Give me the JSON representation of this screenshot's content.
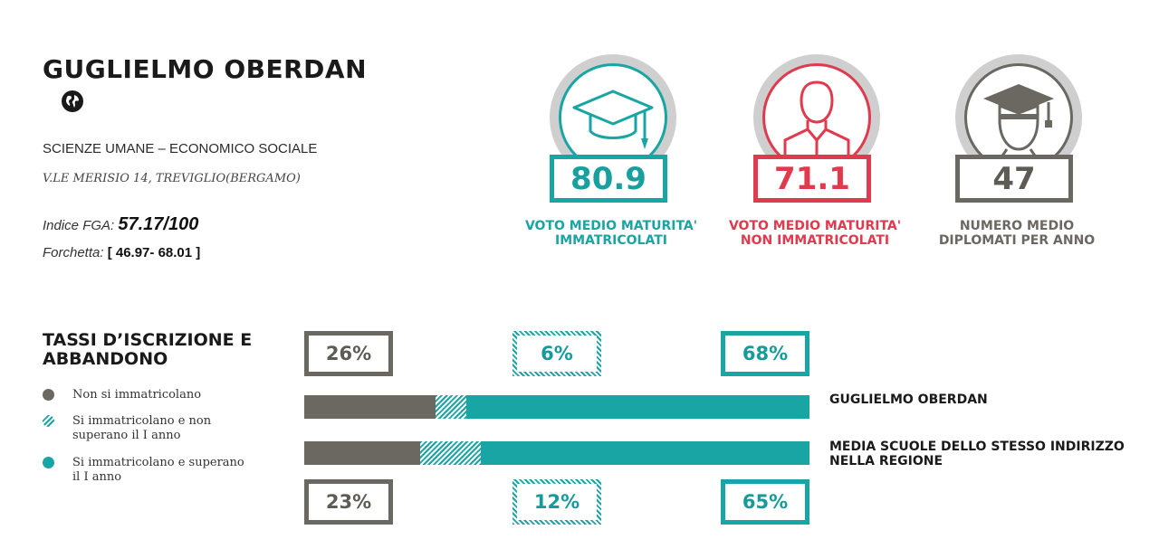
{
  "school": {
    "name": "GUGLIELMO OBERDAN",
    "program": "SCIENZE UMANE – ECONOMICO SOCIALE",
    "address": "V.LE MERISIO 14, TREVIGLIO(BERGAMO)",
    "fga_label": "Indice FGA:",
    "fga_value": "57.17/100",
    "forchetta_label": "Forchetta:",
    "forchetta_value": "[ 46.97- 68.01 ]"
  },
  "stats": [
    {
      "value": "80.9",
      "caption_1": "VOTO MEDIO MATURITA'",
      "caption_2": "IMMATRICOLATI",
      "color": "#1aa5a5",
      "icon": "graduation-cap-icon"
    },
    {
      "value": "71.1",
      "caption_1": "VOTO MEDIO MATURITA'",
      "caption_2": "NON IMMATRICOLATI",
      "color": "#e03a4e",
      "icon": "person-icon"
    },
    {
      "value": "47",
      "caption_1": "NUMERO MEDIO",
      "caption_2": "DIPLOMATI PER ANNO",
      "color": "#6b6861",
      "icon": "graduate-person-icon"
    }
  ],
  "section": {
    "title": "TASSI D’ISCRIZIONE E ABBANDONO"
  },
  "legend": [
    {
      "label": "Non si immatricolano",
      "style": "solid-gray"
    },
    {
      "label": "Si immatricolano e non superano il I anno",
      "style": "hatched-teal"
    },
    {
      "label": "Si immatricolano e superano il I anno",
      "style": "solid-teal"
    }
  ],
  "colors": {
    "gray": "#6b6861",
    "teal": "#1aa5a5",
    "red": "#e03a4e"
  },
  "chart_data": {
    "type": "bar",
    "stacked": true,
    "orientation": "horizontal",
    "categories": [
      "GUGLIELMO OBERDAN",
      "MEDIA SCUOLE DELLO STESSO INDIRIZZO NELLA REGIONE"
    ],
    "series": [
      {
        "name": "Non si immatricolano",
        "values": [
          26,
          23
        ],
        "labels": [
          "26%",
          "23%"
        ]
      },
      {
        "name": "Si immatricolano e non superano il I anno",
        "values": [
          6,
          12
        ],
        "labels": [
          "6%",
          "12%"
        ]
      },
      {
        "name": "Si immatricolano e superano il I anno",
        "values": [
          68,
          65
        ],
        "labels": [
          "68%",
          "65%"
        ]
      }
    ],
    "xlim": [
      0,
      100
    ]
  }
}
